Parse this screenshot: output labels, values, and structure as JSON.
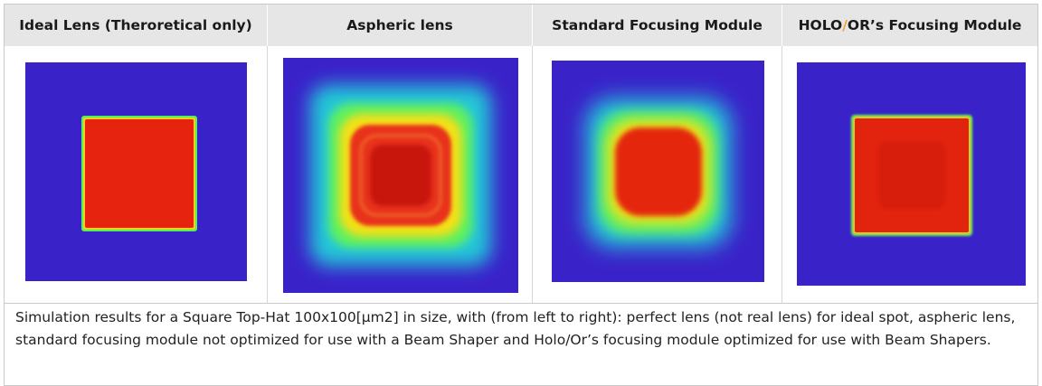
{
  "header": {
    "col1": "Ideal Lens (Theroretical only)",
    "col2": "Aspheric lens",
    "col3": "Standard Focusing Module",
    "col4_prefix": "HOLO",
    "col4_slash": "/",
    "col4_suffix": "OR’s Focusing Module"
  },
  "panels": [
    {
      "name": "ideal-lens-panel",
      "type": "sharp-square"
    },
    {
      "name": "aspheric-lens-panel",
      "type": "ringing-square"
    },
    {
      "name": "standard-module-panel",
      "type": "rounded-square"
    },
    {
      "name": "holo-or-module-panel",
      "type": "sharp-square"
    }
  ],
  "caption": "Simulation results for a Square Top-Hat 100x100[µm2] in size, with (from left to right): perfect lens (not real lens) for ideal spot, aspheric lens, standard focusing module not optimized for use with a Beam Shaper and Holo/Or’s focusing module optimized for use with Beam Shapers.",
  "colors": {
    "background_blue": "#3a22c9",
    "core_red": "#e01e0c",
    "accent_orange": "#f2a32c"
  }
}
